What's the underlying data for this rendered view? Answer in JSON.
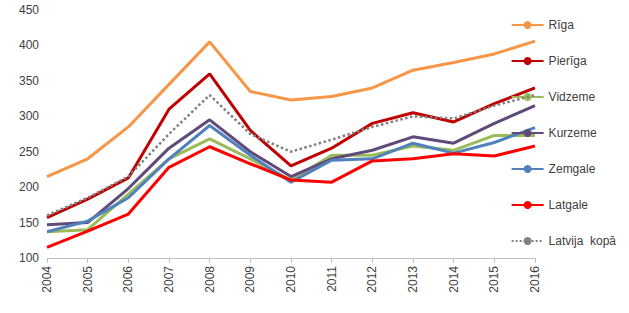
{
  "chart_data": {
    "type": "line",
    "categories": [
      "2004",
      "2005",
      "2006",
      "2007",
      "2008",
      "2009",
      "2010",
      "2011",
      "2012",
      "2013",
      "2014",
      "2015",
      "2016"
    ],
    "series": [
      {
        "name": "Rīga",
        "color": "#f79646",
        "line_style": "solid",
        "values": [
          215,
          240,
          285,
          345,
          405,
          335,
          323,
          328,
          340,
          365,
          376,
          388,
          406
        ]
      },
      {
        "name": "Pierīga",
        "color": "#c00000",
        "line_style": "solid",
        "values": [
          157,
          183,
          213,
          310,
          360,
          280,
          230,
          255,
          290,
          305,
          292,
          318,
          340
        ]
      },
      {
        "name": "Vidzeme",
        "color": "#9bbb59",
        "line_style": "solid",
        "values": [
          137,
          140,
          190,
          240,
          268,
          240,
          210,
          245,
          245,
          258,
          252,
          273,
          273
        ]
      },
      {
        "name": "Kurzeme",
        "color": "#604a7b",
        "line_style": "solid",
        "values": [
          147,
          150,
          198,
          255,
          295,
          250,
          215,
          240,
          252,
          271,
          262,
          290,
          315
        ]
      },
      {
        "name": "Zemgale",
        "color": "#4f81bd",
        "line_style": "solid",
        "values": [
          137,
          152,
          185,
          240,
          287,
          245,
          207,
          238,
          240,
          262,
          248,
          263,
          284
        ]
      },
      {
        "name": "Latgale",
        "color": "#ff0000",
        "line_style": "solid",
        "values": [
          115,
          138,
          162,
          228,
          257,
          233,
          210,
          207,
          237,
          240,
          247,
          244,
          258
        ]
      },
      {
        "name": "Latvija  kopā",
        "color": "#808080",
        "line_style": "dotted",
        "values": [
          160,
          185,
          215,
          275,
          330,
          275,
          250,
          267,
          285,
          300,
          297,
          315,
          330
        ]
      }
    ],
    "ylim": [
      100,
      450
    ],
    "yticks": [
      100,
      150,
      200,
      250,
      300,
      350,
      400,
      450
    ],
    "grid": false,
    "legend": "right"
  }
}
